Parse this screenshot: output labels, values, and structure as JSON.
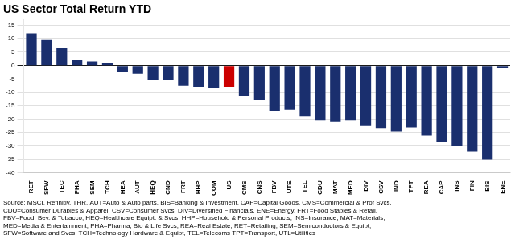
{
  "chart_data": {
    "type": "bar",
    "title": "US Sector Total Return YTD",
    "categories": [
      "RET",
      "SFW",
      "TEC",
      "PHA",
      "SEM",
      "TCH",
      "HEA",
      "AUT",
      "HEQ",
      "CND",
      "FRT",
      "HHP",
      "COM",
      "US",
      "CMS",
      "CNS",
      "FBV",
      "UTE",
      "TEL",
      "CDU",
      "MAT",
      "MED",
      "DIV",
      "CSV",
      "IND",
      "TPT",
      "REA",
      "CAP",
      "INS",
      "FIN",
      "BIS",
      "ENE"
    ],
    "values": [
      12.0,
      9.5,
      6.5,
      2.0,
      1.5,
      1.0,
      -2.5,
      -3.0,
      -5.5,
      -5.5,
      -7.5,
      -8.0,
      -8.5,
      -8.0,
      -11.5,
      -13.0,
      -17.0,
      -16.5,
      -19.0,
      -20.5,
      -21.0,
      -20.5,
      -22.5,
      -23.5,
      -24.5,
      -23.0,
      -26.0,
      -28.5,
      -30.0,
      -32.0,
      -35.0,
      -1.0
    ],
    "colors": [
      "#1a2f6e",
      "#1a2f6e",
      "#1a2f6e",
      "#1a2f6e",
      "#1a2f6e",
      "#1a2f6e",
      "#1a2f6e",
      "#1a2f6e",
      "#1a2f6e",
      "#1a2f6e",
      "#1a2f6e",
      "#1a2f6e",
      "#1a2f6e",
      "#cc0000",
      "#1a2f6e",
      "#1a2f6e",
      "#1a2f6e",
      "#1a2f6e",
      "#1a2f6e",
      "#1a2f6e",
      "#1a2f6e",
      "#1a2f6e",
      "#1a2f6e",
      "#1a2f6e",
      "#1a2f6e",
      "#1a2f6e",
      "#1a2f6e",
      "#1a2f6e",
      "#1a2f6e",
      "#1a2f6e",
      "#1a2f6e",
      "#1a2f6e"
    ],
    "ylim": [
      -40,
      17
    ],
    "yticks": [
      -40,
      -35,
      -30,
      -25,
      -20,
      -15,
      -10,
      -5,
      0,
      5,
      10,
      15
    ],
    "grid": true,
    "annotations": [
      "Source: MSCI, Refinitiv, THR. AUT=Auto & Auto parts, BIS=Banking & Investment, CAP=Capital Goods, CMS=Commercial & Prof Svcs,\nCDU=Consumer Durables & Apparel, CSV=Consumer Svcs, DIV=Diversified Financials, ENE=Energy, FRT=Food Staples & Retail,\nFBV=Food, Bev. & Tobacco, HEQ=Healthcare Equipt. & Svcs, HHP=Household & Personal Products, INS=Insurance, MAT=Materials,\nMED=Media & Entertainment, PHA=Pharma, Bio & Life Svcs, REA=Real Estate, RET=Retailing, SEM=Semiconductors & Equipt,\nSFW=Software and Svcs, TCH=Technology Hardware & Equipt, TEL=Telecoms TPT=Transport, UTL=Utilities"
    ]
  }
}
